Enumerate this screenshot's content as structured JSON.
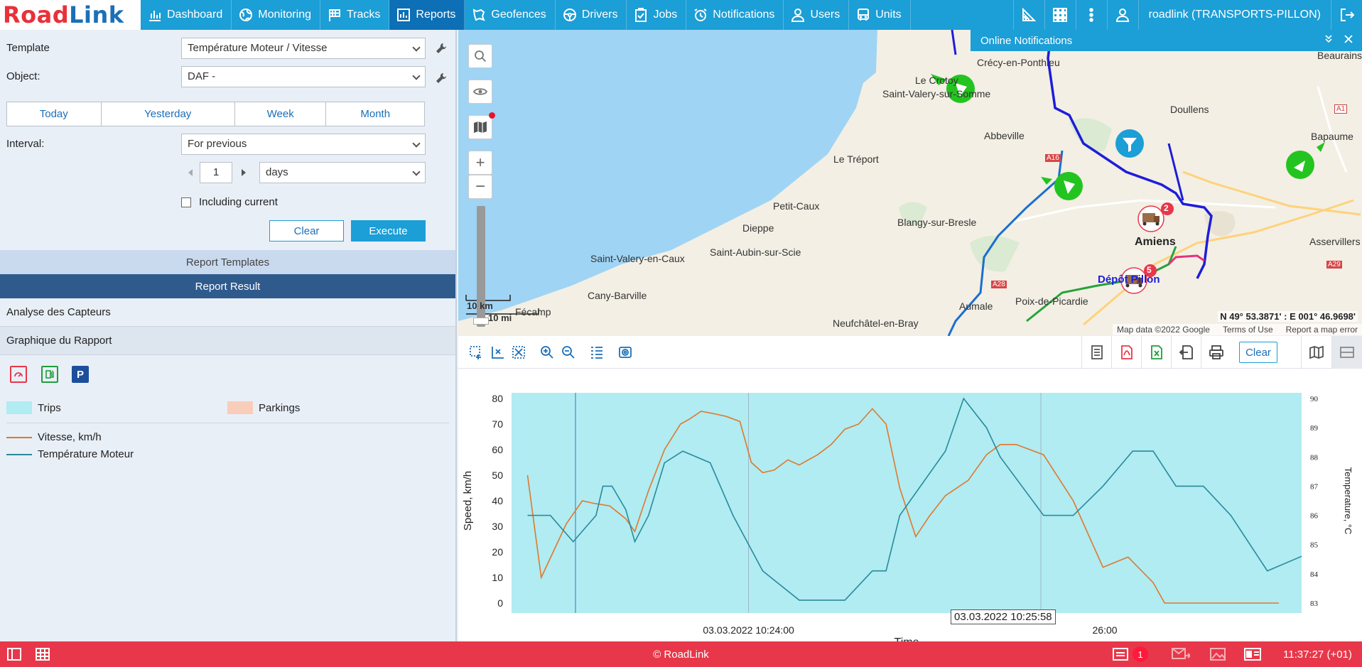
{
  "brand": {
    "name_part1": "Road",
    "name_part2": "Link"
  },
  "nav": [
    {
      "label": "Dashboard",
      "icon": "bar-chart-icon"
    },
    {
      "label": "Monitoring",
      "icon": "globe-icon"
    },
    {
      "label": "Tracks",
      "icon": "flag-icon"
    },
    {
      "label": "Reports",
      "icon": "report-icon",
      "active": true
    },
    {
      "label": "Geofences",
      "icon": "geofence-icon"
    },
    {
      "label": "Drivers",
      "icon": "steering-wheel-icon"
    },
    {
      "label": "Jobs",
      "icon": "clipboard-check-icon"
    },
    {
      "label": "Notifications",
      "icon": "alarm-clock-icon"
    },
    {
      "label": "Users",
      "icon": "user-icon"
    },
    {
      "label": "Units",
      "icon": "bus-icon"
    }
  ],
  "account": {
    "label": "roadlink (TRANSPORTS-PILLON)"
  },
  "report_form": {
    "template_label": "Template",
    "template_value": "Température Moteur / Vitesse",
    "object_label": "Object:",
    "object_value": "DAF -",
    "periods": [
      "Today",
      "Yesterday",
      "Week",
      "Month"
    ],
    "interval_label": "Interval:",
    "interval_value": "For previous",
    "count_value": "1",
    "unit_value": "days",
    "including_current_label": "Including current",
    "including_current_checked": false,
    "clear_label": "Clear",
    "execute_label": "Execute"
  },
  "sections": {
    "templates": "Report Templates",
    "result": "Report Result",
    "item1": "Analyse des Capteurs",
    "item2": "Graphique du Rapport"
  },
  "legend": {
    "trips": "Trips",
    "parkings": "Parkings",
    "series1": "Vitesse, km/h",
    "series2": "Température Moteur",
    "trips_color": "#b0ecf2",
    "parkings_color": "#f9cdb9"
  },
  "map": {
    "labels": [
      "Crécy-en-Ponthieu",
      "Le Crotoy",
      "Saint-Valery-sur-Somme",
      "Abbeville",
      "Le Tréport",
      "Petit-Caux",
      "Dieppe",
      "Blangy-sur-Bresle",
      "Saint-Valery-en-Caux",
      "Saint-Aubin-sur-Scie",
      "Cany-Barville",
      "Fécamp",
      "Aumale",
      "Poix-de-Picardie",
      "Neufchâtel-en-Bray",
      "Amiens",
      "Doullens",
      "Bapaume",
      "Beaurains",
      "Asservillers",
      "A1",
      "A16",
      "A29",
      "A28"
    ],
    "depot_label": "Dépôt Pillon",
    "scale_km": "10 km",
    "scale_mi": "10 mi",
    "coordinates": "N 49° 53.3871' : E 001° 46.9698'",
    "attribution": [
      "Map data ©2022 Google",
      "Terms of Use",
      "Report a map error"
    ],
    "truck_badges": [
      "2",
      "5"
    ]
  },
  "notifications_panel": {
    "title": "Online Notifications"
  },
  "chart_toolbar": {
    "clear_label": "Clear"
  },
  "chart_data": {
    "type": "line",
    "xlabel": "Time",
    "ylabel": "Speed, km/h",
    "y2label": "Temperature, °C",
    "ylim": [
      0,
      80
    ],
    "y2lim": [
      83,
      90
    ],
    "yticks": [
      0,
      10,
      20,
      30,
      40,
      50,
      60,
      70,
      80
    ],
    "y2ticks": [
      83,
      84,
      85,
      86,
      87,
      88,
      89,
      90
    ],
    "x_tick_labels": [
      "03.03.2022 10:24:00",
      "03.03.2022 10:26:00"
    ],
    "x_tick_label_visible": [
      "03.03.2022 10:24:00",
      "26:00"
    ],
    "tooltip": "03.03.2022 10:25:58",
    "x_range_seconds": [
      0,
      346
    ],
    "series": [
      {
        "name": "Vitesse, km/h",
        "axis": "left",
        "color": "#e0782b",
        "x": [
          7,
          13,
          24,
          31,
          36,
          43,
          50,
          54,
          60,
          67,
          74,
          78,
          83,
          89,
          94,
          100,
          105,
          110,
          115,
          121,
          126,
          134,
          140,
          146,
          152,
          158,
          164,
          170,
          177,
          183,
          190,
          200,
          208,
          214,
          221,
          233,
          246,
          259,
          270,
          281,
          286,
          290,
          296,
          303,
          308,
          315,
          325,
          336
        ],
        "y": [
          50,
          10,
          31,
          40,
          39,
          38,
          33,
          28,
          44,
          60,
          70,
          72,
          75,
          74,
          73,
          71,
          55,
          51,
          52,
          56,
          54,
          58,
          62,
          68,
          70,
          76,
          70,
          45,
          26,
          34,
          42,
          48,
          58,
          62,
          62,
          58,
          40,
          14,
          18,
          8,
          0,
          0,
          0,
          0,
          0,
          0,
          0,
          0
        ]
      },
      {
        "name": "Température Moteur",
        "axis": "right",
        "color": "#2a8a9a",
        "x": [
          7,
          17,
          27,
          37,
          40,
          44,
          50,
          54,
          60,
          67,
          75,
          87,
          97,
          110,
          126,
          134,
          146,
          158,
          164,
          170,
          190,
          198,
          208,
          214,
          233,
          246,
          259,
          272,
          281,
          291,
          303,
          315,
          331,
          346
        ],
        "y": [
          86,
          86,
          85.1,
          86,
          87,
          87,
          86.2,
          85.1,
          86,
          87.8,
          88.2,
          87.8,
          86,
          84.1,
          83.1,
          83.1,
          83.1,
          84.1,
          84.1,
          86,
          88.2,
          90,
          89,
          88,
          86,
          86,
          87,
          88.2,
          88.2,
          87,
          87,
          86,
          84.1,
          84.6
        ]
      }
    ],
    "trip_bands": [
      [
        0,
        346
      ]
    ],
    "vertical_markers": [
      28
    ]
  },
  "status_bar": {
    "copyright": "© RoadLink",
    "notif_count": "1",
    "clock": "11:37:27 (+01)"
  }
}
